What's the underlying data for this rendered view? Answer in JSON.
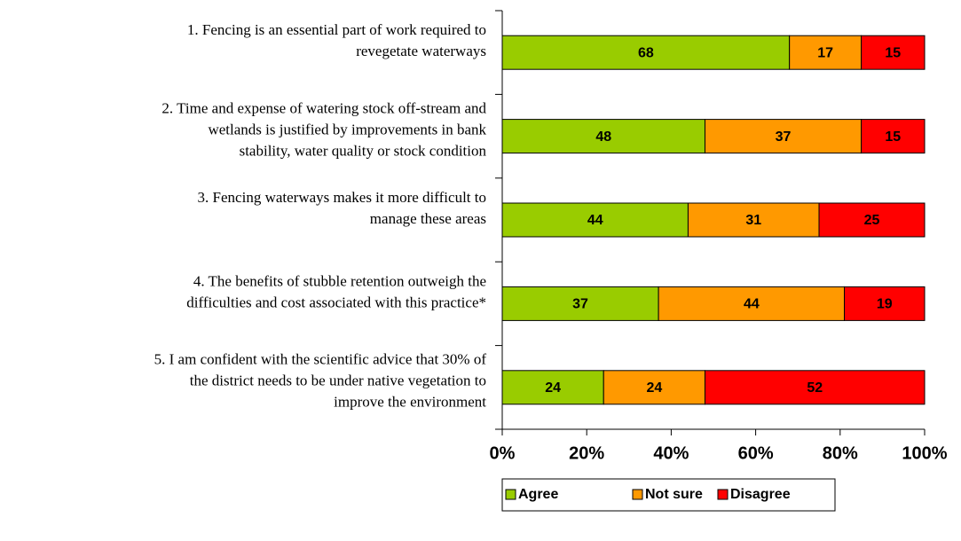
{
  "chart_data": {
    "type": "stacked_bar_horizontal",
    "categories": [
      [
        "1. Fencing is an essential part of work required to",
        "revegetate waterways"
      ],
      [
        "2. Time and expense of watering stock off-stream and",
        "wetlands is justified by improvements in bank",
        "stability, water quality or stock condition"
      ],
      [
        "3. Fencing waterways makes it more difficult to",
        "manage these areas"
      ],
      [
        "4. The benefits of stubble retention outweigh the",
        "difficulties and cost associated with this practice*"
      ],
      [
        "5. I am confident with the scientific advice that 30% of",
        "the district needs to be under native vegetation to",
        "improve the environment"
      ]
    ],
    "series": [
      {
        "name": "Agree",
        "color": "#99cc00",
        "values": [
          68,
          48,
          44,
          37,
          24
        ]
      },
      {
        "name": "Not sure",
        "color": "#ff9900",
        "values": [
          17,
          37,
          31,
          44,
          24
        ]
      },
      {
        "name": "Disagree",
        "color": "#ff0000",
        "values": [
          15,
          15,
          25,
          19,
          52
        ]
      }
    ],
    "xlim": [
      0,
      100
    ],
    "xticks": [
      {
        "value": 0,
        "label": "0%"
      },
      {
        "value": 20,
        "label": "20%"
      },
      {
        "value": 40,
        "label": "40%"
      },
      {
        "value": 60,
        "label": "60%"
      },
      {
        "value": 80,
        "label": "80%"
      },
      {
        "value": 100,
        "label": "100%"
      }
    ],
    "legend": "bottom"
  }
}
